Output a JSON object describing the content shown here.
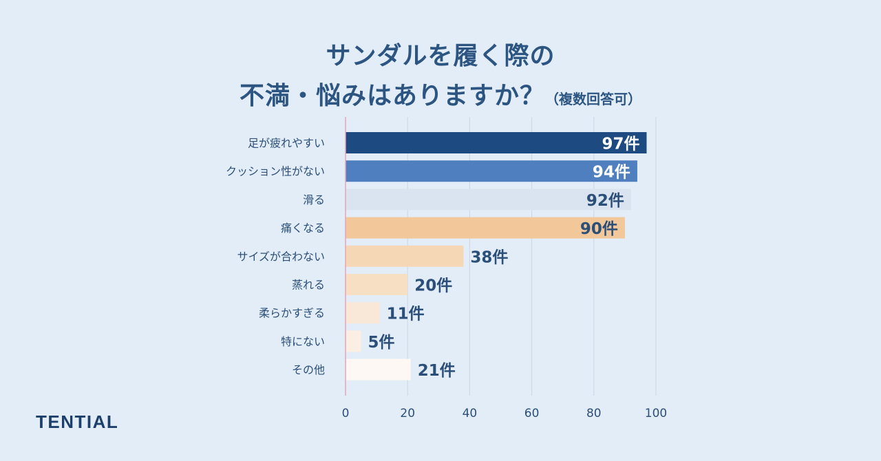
{
  "title": {
    "line1": "サンダルを履く際の",
    "line2": "不満・悩みはありますか？",
    "note": "（複数回答可）"
  },
  "brand": "TENTIAL",
  "chart_data": {
    "type": "bar",
    "orientation": "horizontal",
    "categories": [
      "足が疲れやすい",
      "クッション性がない",
      "滑る",
      "痛くなる",
      "サイズが合わない",
      "蒸れる",
      "柔らかすぎる",
      "特にない",
      "その他"
    ],
    "values": [
      97,
      94,
      92,
      90,
      38,
      20,
      11,
      5,
      21
    ],
    "value_labels": [
      "97件",
      "94件",
      "92件",
      "90件",
      "38件",
      "20件",
      "11件",
      "5件",
      "21件"
    ],
    "bar_colors": [
      "#1d4a80",
      "#4f7fbf",
      "#d9e4f0",
      "#f2c89a",
      "#f5d7b6",
      "#f7dfc4",
      "#f9e8d7",
      "#fbeee2",
      "#fdf8f3"
    ],
    "label_colors": [
      "#ffffff",
      "#ffffff",
      "#2b4f78",
      "#2b4f78",
      "#2b4f78",
      "#2b4f78",
      "#2b4f78",
      "#2b4f78",
      "#2b4f78"
    ],
    "xlim": [
      0,
      100
    ],
    "xticks": [
      0,
      20,
      40,
      60,
      80,
      100
    ],
    "grid": true,
    "xlabel": "",
    "ylabel": ""
  }
}
